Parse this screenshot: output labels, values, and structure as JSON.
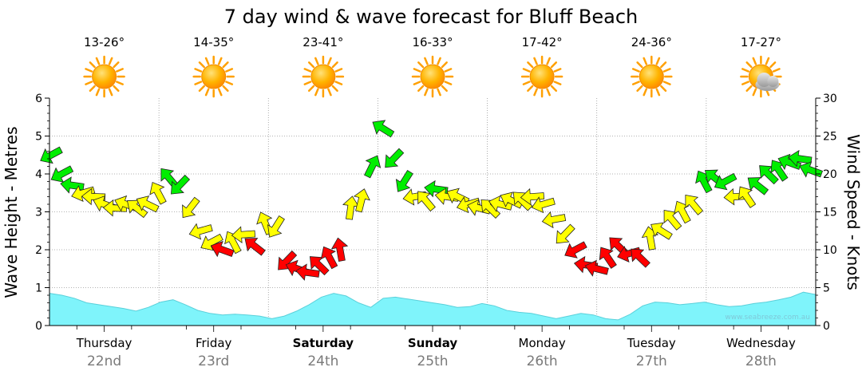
{
  "title": "7 day wind & wave forecast for Bluff Beach",
  "credit": "www.seabreeze.com.au",
  "colors": {
    "wave_fill": "#7ff4fb",
    "wave_stroke": "#5ad0da",
    "wind_strong": "#ff0000",
    "wind_moderate": "#ffff00",
    "wind_light": "#00ee00",
    "grid": "#999999"
  },
  "days": [
    {
      "name": "Thursday",
      "date": "22nd",
      "temp": "13-26°",
      "icon": "sun-icon",
      "bold": false
    },
    {
      "name": "Friday",
      "date": "23rd",
      "temp": "14-35°",
      "icon": "sun-icon",
      "bold": false
    },
    {
      "name": "Saturday",
      "date": "24th",
      "temp": "23-41°",
      "icon": "sun-icon",
      "bold": true
    },
    {
      "name": "Sunday",
      "date": "25th",
      "temp": "16-33°",
      "icon": "sun-icon",
      "bold": true
    },
    {
      "name": "Monday",
      "date": "26th",
      "temp": "17-42°",
      "icon": "sun-icon",
      "bold": false
    },
    {
      "name": "Tuesday",
      "date": "27th",
      "temp": "24-36°",
      "icon": "sun-icon",
      "bold": false
    },
    {
      "name": "Wednesday",
      "date": "28th",
      "temp": "17-27°",
      "icon": "sun-cloud-icon",
      "bold": false
    }
  ],
  "chart_data": {
    "type": "area",
    "ylabel": "Wave Height - Metres",
    "y2label": "Wind Speed - Knots",
    "ylim": [
      0,
      6
    ],
    "y2lim": [
      0,
      30
    ],
    "yticks": [
      "0",
      "1",
      "2",
      "3",
      "4",
      "5",
      "6"
    ],
    "y2ticks": [
      "0",
      "5",
      "10",
      "15",
      "20",
      "25",
      "30"
    ],
    "grid": true,
    "series": [
      {
        "values": [
          0.85,
          0.8,
          0.72,
          0.6,
          0.55,
          0.5,
          0.45,
          0.38,
          0.48,
          0.62,
          0.68,
          0.55,
          0.4,
          0.32,
          0.28,
          0.3,
          0.28,
          0.25,
          0.18,
          0.25,
          0.38,
          0.55,
          0.75,
          0.85,
          0.78,
          0.6,
          0.48,
          0.72,
          0.75,
          0.7,
          0.65,
          0.6,
          0.55,
          0.48,
          0.5,
          0.58,
          0.52,
          0.4,
          0.35,
          0.32,
          0.25,
          0.18,
          0.25,
          0.32,
          0.28,
          0.18,
          0.15,
          0.3,
          0.52,
          0.62,
          0.6,
          0.55,
          0.58,
          0.62,
          0.55,
          0.5,
          0.52,
          0.58,
          0.62,
          0.68,
          0.75,
          0.88,
          0.82
        ]
      },
      {
        "values": [
          22.5,
          20,
          18.5,
          17.5,
          17,
          16,
          15.5,
          16,
          15.5,
          16,
          17.5,
          19.5,
          18.5,
          15.5,
          12.5,
          11,
          10,
          11,
          12,
          10.5,
          13.5,
          13,
          8.5,
          7.5,
          7,
          8,
          9,
          10,
          15.5,
          16.5,
          21,
          26,
          22,
          19,
          17,
          16.5,
          18,
          17,
          17,
          16,
          15.5,
          15.5,
          16,
          16.5,
          16.5,
          17,
          16,
          14,
          12,
          10,
          8,
          7.5,
          9,
          10.5,
          9.5,
          9,
          11.5,
          12.5,
          14,
          15,
          16,
          19,
          19.5,
          19,
          17,
          17,
          18.5,
          20,
          20.5,
          21.5,
          22,
          20.5
        ]
      }
    ]
  }
}
